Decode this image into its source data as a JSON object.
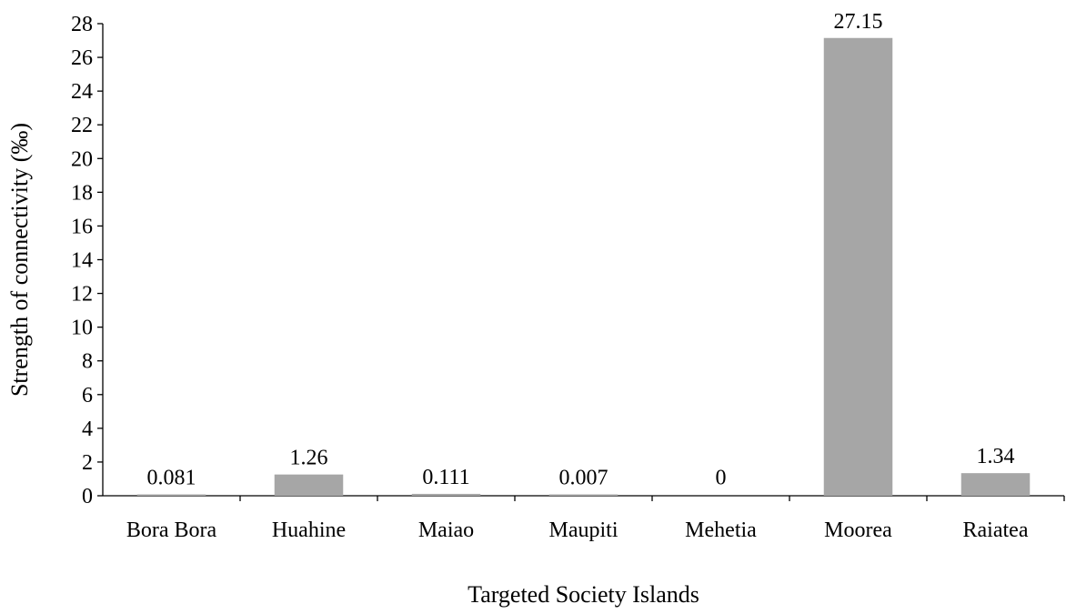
{
  "chart_data": {
    "type": "bar",
    "categories": [
      "Bora Bora",
      "Huahine",
      "Maiao",
      "Maupiti",
      "Mehetia",
      "Moorea",
      "Raiatea"
    ],
    "values": [
      0.081,
      1.26,
      0.111,
      0.007,
      0,
      27.15,
      1.34
    ],
    "value_labels": [
      "0.081",
      "1.26",
      "0.111",
      "0.007",
      "0",
      "27.15",
      "1.34"
    ],
    "xlabel": "Targeted Society Islands",
    "ylabel": "Strength of connectivity (‰)",
    "ylim": [
      0,
      28
    ],
    "yticks": [
      0,
      2,
      4,
      6,
      8,
      10,
      12,
      14,
      16,
      18,
      20,
      22,
      24,
      26,
      28
    ],
    "bar_color": "#a6a6a6",
    "grid": false,
    "legend": "none"
  }
}
